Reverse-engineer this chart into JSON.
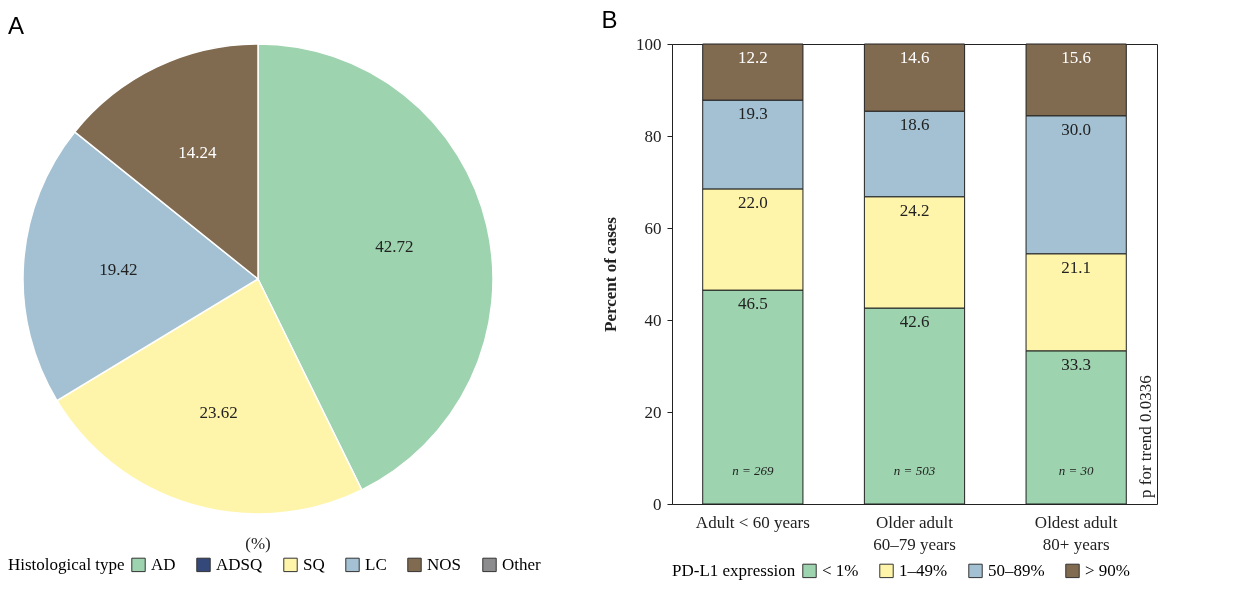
{
  "chart_data": [
    {
      "type": "pie",
      "title": "A",
      "legend_title": "Histological type",
      "legend": "bottom",
      "data_labels": true,
      "categories": [
        "AD",
        "ADSQ",
        "SQ",
        "LC",
        "NOS",
        "Other"
      ],
      "values": [
        42.72,
        0,
        23.62,
        19.42,
        14.24,
        0
      ],
      "colors": [
        "#9dd3ae",
        "#34497a",
        "#fff5aa",
        "#a3c1d2",
        "#806a50",
        "#8c8c8e"
      ],
      "annotations": [
        "(%)"
      ]
    },
    {
      "type": "bar",
      "title": "B",
      "stacked": true,
      "ylabel": "Percent of cases",
      "legend_title": "PD-L1 expression",
      "legend": "bottom",
      "data_labels": true,
      "grid": false,
      "categories": [
        "Adult < 60 years",
        "Older adult\n60–79 years",
        "Oldest adult\n80+ years"
      ],
      "ylim": [
        0,
        100
      ],
      "yticks": [
        0,
        20,
        40,
        60,
        80,
        100
      ],
      "series": [
        {
          "name": "< 1%",
          "color": "#9dd3ae",
          "values": [
            46.5,
            42.6,
            33.3
          ],
          "value_labels": [
            "46.5",
            "42.6",
            "33.3"
          ]
        },
        {
          "name": "1–49%",
          "color": "#fff5aa",
          "values": [
            22.0,
            24.2,
            21.1
          ],
          "value_labels": [
            "22.0",
            "24.2",
            "21.1"
          ]
        },
        {
          "name": "50–89%",
          "color": "#a3c1d2",
          "values": [
            19.3,
            18.6,
            30.0
          ],
          "value_labels": [
            "19.3",
            "18.6",
            "30.0"
          ]
        },
        {
          "name": "> 90%",
          "color": "#806a50",
          "values": [
            12.2,
            14.6,
            15.6
          ],
          "value_labels": [
            "12.2",
            "14.6",
            "15.6"
          ]
        }
      ],
      "annotations": [
        "n = 269",
        "n = 503",
        "n = 30",
        "p for trend 0.0336"
      ]
    }
  ]
}
